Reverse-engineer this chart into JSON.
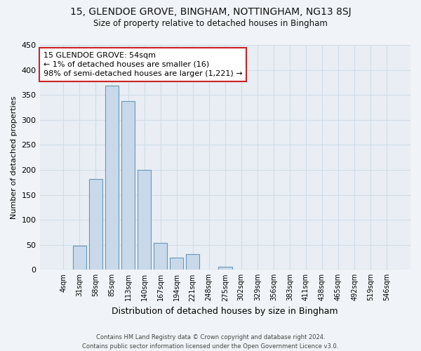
{
  "title_line1": "15, GLENDOE GROVE, BINGHAM, NOTTINGHAM, NG13 8SJ",
  "title_line2": "Size of property relative to detached houses in Bingham",
  "xlabel": "Distribution of detached houses by size in Bingham",
  "ylabel": "Number of detached properties",
  "bar_color": "#c9d9ea",
  "bar_edge_color": "#6699bb",
  "categories": [
    "4sqm",
    "31sqm",
    "58sqm",
    "85sqm",
    "113sqm",
    "140sqm",
    "167sqm",
    "194sqm",
    "221sqm",
    "248sqm",
    "275sqm",
    "302sqm",
    "329sqm",
    "356sqm",
    "383sqm",
    "411sqm",
    "438sqm",
    "465sqm",
    "492sqm",
    "519sqm",
    "546sqm"
  ],
  "values": [
    0,
    48,
    182,
    368,
    337,
    200,
    54,
    25,
    31,
    0,
    6,
    0,
    0,
    0,
    0,
    0,
    0,
    0,
    0,
    0,
    1
  ],
  "ylim": [
    0,
    450
  ],
  "yticks": [
    0,
    50,
    100,
    150,
    200,
    250,
    300,
    350,
    400,
    450
  ],
  "annotation_line1": "15 GLENDOE GROVE: 54sqm",
  "annotation_line2": "← 1% of detached houses are smaller (16)",
  "annotation_line3": "98% of semi-detached houses are larger (1,221) →",
  "footer_line1": "Contains HM Land Registry data © Crown copyright and database right 2024.",
  "footer_line2": "Contains public sector information licensed under the Open Government Licence v3.0.",
  "background_color": "#f0f4f8",
  "plot_bg_color": "#e8eef4",
  "grid_color": "#d0dce8"
}
